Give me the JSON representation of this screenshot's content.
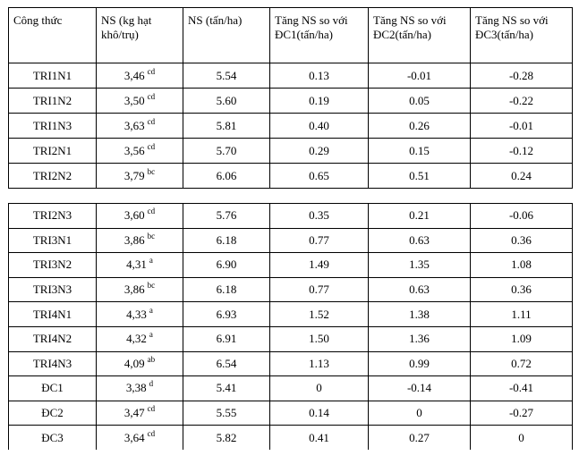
{
  "table": {
    "header": [
      "Công thức",
      "NS (kg hạt khô/trụ)",
      "NS (tấn/ha)",
      "Tăng NS so với ĐC1(tấn/ha)",
      "Tăng NS so với ĐC2(tấn/ha)",
      "Tăng NS so với ĐC3(tấn/ha)"
    ],
    "groups": [
      [
        [
          "TRI1N1",
          {
            "value": "3,46",
            "sup": "cd"
          },
          "5.54",
          "0.13",
          "-0.01",
          "-0.28"
        ],
        [
          "TRI1N2",
          {
            "value": "3,50",
            "sup": "cd"
          },
          "5.60",
          "0.19",
          "0.05",
          "-0.22"
        ],
        [
          "TRI1N3",
          {
            "value": "3,63",
            "sup": "cd"
          },
          "5.81",
          "0.40",
          "0.26",
          "-0.01"
        ],
        [
          "TRI2N1",
          {
            "value": "3,56",
            "sup": "cd"
          },
          "5.70",
          "0.29",
          "0.15",
          "-0.12"
        ],
        [
          "TRI2N2",
          {
            "value": "3,79",
            "sup": "bc"
          },
          "6.06",
          "0.65",
          "0.51",
          "0.24"
        ]
      ],
      [
        [
          "TRI2N3",
          {
            "value": "3,60",
            "sup": "cd"
          },
          "5.76",
          "0.35",
          "0.21",
          "-0.06"
        ],
        [
          "TRI3N1",
          {
            "value": "3,86",
            "sup": "bc"
          },
          "6.18",
          "0.77",
          "0.63",
          "0.36"
        ],
        [
          "TRI3N2",
          {
            "value": "4,31",
            "sup": "a"
          },
          "6.90",
          "1.49",
          "1.35",
          "1.08"
        ],
        [
          "TRI3N3",
          {
            "value": "3,86",
            "sup": "bc"
          },
          "6.18",
          "0.77",
          "0.63",
          "0.36"
        ],
        [
          "TRI4N1",
          {
            "value": "4,33",
            "sup": "a"
          },
          "6.93",
          "1.52",
          "1.38",
          "1.11"
        ],
        [
          "TRI4N2",
          {
            "value": "4,32",
            "sup": "a"
          },
          "6.91",
          "1.50",
          "1.36",
          "1.09"
        ],
        [
          "TRI4N3",
          {
            "value": "4,09",
            "sup": "ab"
          },
          "6.54",
          "1.13",
          "0.99",
          "0.72"
        ],
        [
          "ĐC1",
          {
            "value": "3,38",
            "sup": "d"
          },
          "5.41",
          "0",
          "-0.14",
          "-0.41"
        ],
        [
          "ĐC2",
          {
            "value": "3,47",
            "sup": "cd"
          },
          "5.55",
          "0.14",
          "0",
          "-0.27"
        ],
        [
          "ĐC3",
          {
            "value": "3,64",
            "sup": "cd"
          },
          "5.82",
          "0.41",
          "0.27",
          "0"
        ]
      ]
    ]
  }
}
